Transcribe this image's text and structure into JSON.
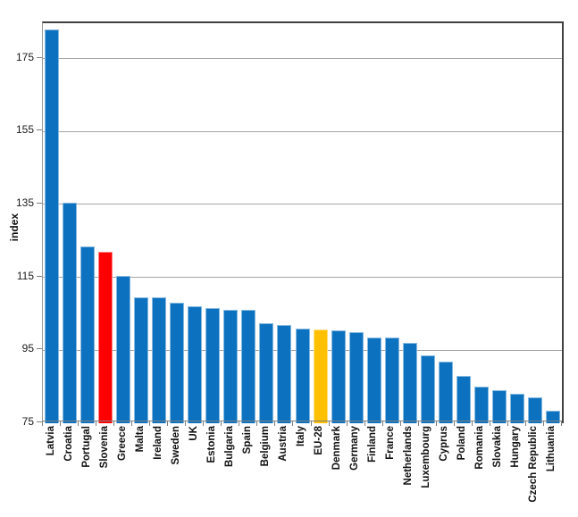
{
  "chart_data": {
    "type": "bar",
    "title": "",
    "xlabel": "",
    "ylabel": "index",
    "yticks": [
      75,
      95,
      115,
      135,
      155,
      175
    ],
    "ylim": [
      75,
      184.7
    ],
    "grid": "horizontal",
    "legend": "none",
    "categories": [
      "Latvia",
      "Croatia",
      "Portugal",
      "Slovenia",
      "Greece",
      "Malta",
      "Ireland",
      "Sweden",
      "UK",
      "Estonia",
      "Bulgaria",
      "Spain",
      "Belgium",
      "Austria",
      "Italy",
      "EU-28",
      "Denmark",
      "Germany",
      "Finland",
      "France",
      "Netherlands",
      "Luxembourg",
      "Cyprus",
      "Poland",
      "Romania",
      "Slovakia",
      "Hungary",
      "Czech Republic",
      "Lithuania"
    ],
    "values": [
      183,
      135.5,
      123.5,
      122,
      115.5,
      109.5,
      109.5,
      108,
      107,
      106.5,
      106,
      106,
      102.5,
      102,
      101,
      100.8,
      100.5,
      100,
      98.5,
      98.5,
      97,
      93.5,
      92,
      88,
      85,
      84,
      83,
      82,
      78.5
    ],
    "bar_colors": {
      "default": "#0C72C0",
      "Slovenia": "#FF0000",
      "EU-28": "#FFC000"
    }
  },
  "colors": {
    "gridline": "#A6A6A6",
    "axis_line": "#808080",
    "plot_border": "#404040",
    "text": "#111111"
  }
}
